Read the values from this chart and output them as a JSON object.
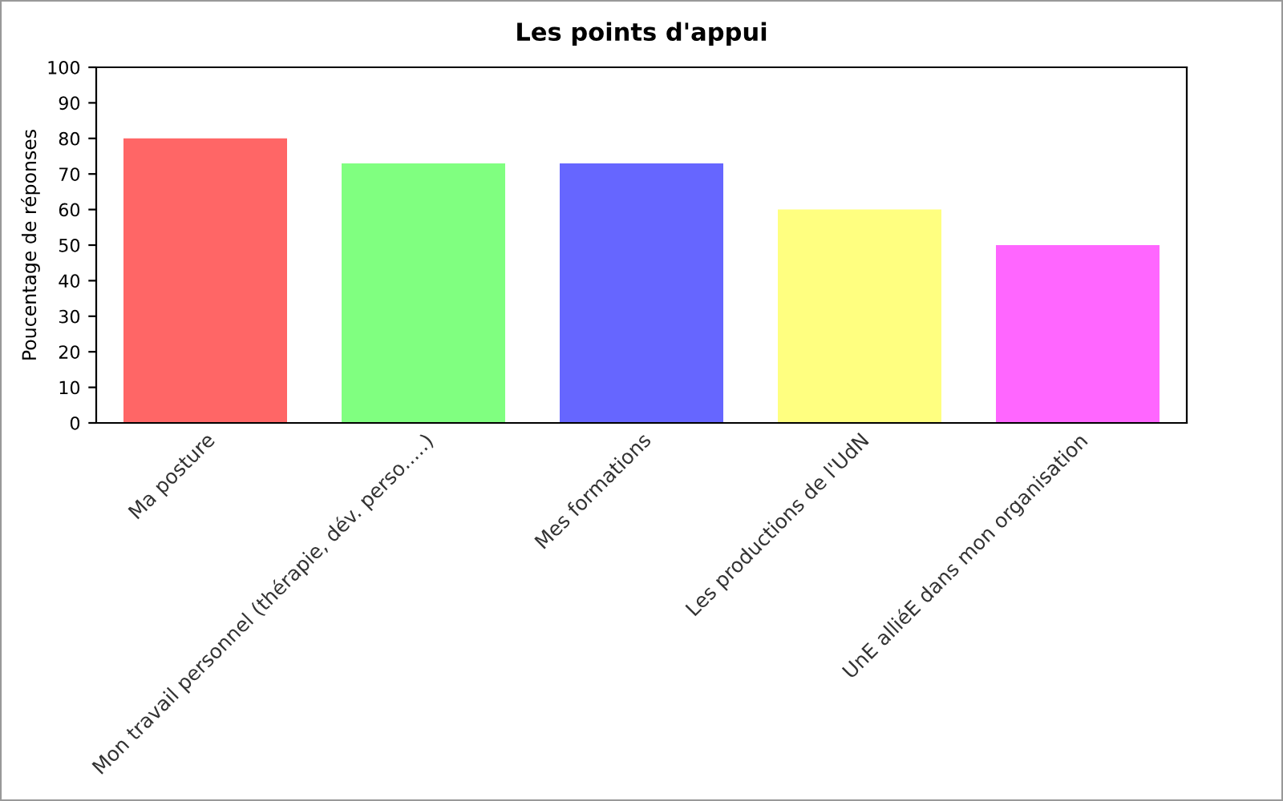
{
  "chart_data": {
    "type": "bar",
    "title": "Les points d'appui",
    "ylabel": "Poucentage de réponses",
    "categories": [
      "Ma posture",
      "Mon travail personnel (thérapie, dév. perso.....)",
      "Mes formations",
      "Les productions de l'UdN",
      "UnE alliéE dans mon organisation"
    ],
    "values": [
      80,
      73,
      73,
      60,
      50
    ],
    "colors": [
      "#ff6666",
      "#80ff80",
      "#6666ff",
      "#ffff80",
      "#ff66ff"
    ],
    "ylim": [
      0,
      100
    ],
    "yticks": [
      0,
      10,
      20,
      30,
      40,
      50,
      60,
      70,
      80,
      90,
      100
    ],
    "grid": false,
    "legend": false
  }
}
